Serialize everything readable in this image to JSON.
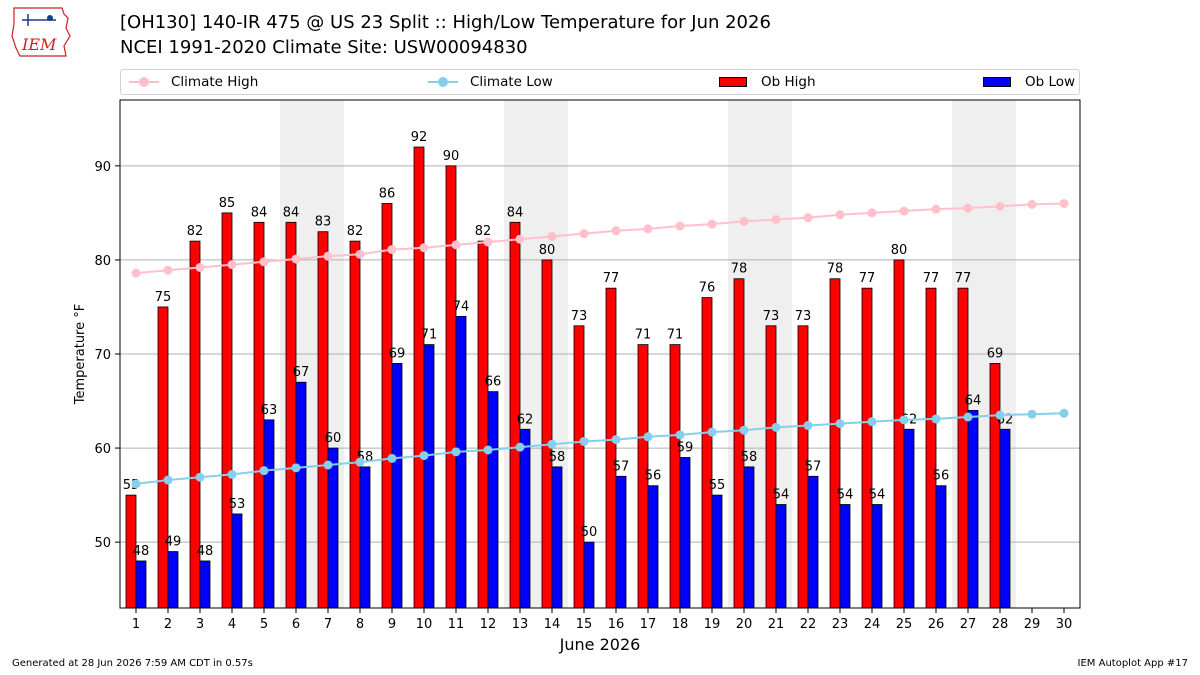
{
  "logo": {
    "text": "IEM"
  },
  "title_line1": "[OH130] 140-IR 475 @ US 23 Split :: High/Low Temperature for Jun 2026",
  "title_line2": "NCEI 1991-2020 Climate Site: USW00094830",
  "footer_left": "Generated at 28 Jun 2026 7:59 AM CDT in 0.57s",
  "footer_right": "IEM Autoplot App #17",
  "legend": {
    "placement": "top",
    "items": [
      {
        "label": "Climate High",
        "kind": "line",
        "color": "#ffc0cb"
      },
      {
        "label": "Climate Low",
        "kind": "line",
        "color": "#87ceeb"
      },
      {
        "label": "Ob High",
        "kind": "bar",
        "color": "#ff0000"
      },
      {
        "label": "Ob Low",
        "kind": "bar",
        "color": "#0000ff"
      }
    ]
  },
  "chart_data": {
    "type": "bar",
    "title": "[OH130] 140-IR 475 @ US 23 Split :: High/Low Temperature for Jun 2026",
    "subtitle": "NCEI 1991-2020 Climate Site: USW00094830",
    "xlabel": "June 2026",
    "ylabel": "Temperature °F",
    "x": [
      1,
      2,
      3,
      4,
      5,
      6,
      7,
      8,
      9,
      10,
      11,
      12,
      13,
      14,
      15,
      16,
      17,
      18,
      19,
      20,
      21,
      22,
      23,
      24,
      25,
      26,
      27,
      28,
      29,
      30
    ],
    "xlim": [
      0.5,
      30.5
    ],
    "ylim": [
      43,
      97
    ],
    "yticks": [
      50,
      60,
      70,
      80,
      90
    ],
    "grid": "horizontal",
    "weekend_shading": [
      [
        6,
        7
      ],
      [
        13,
        14
      ],
      [
        20,
        21
      ],
      [
        27,
        28
      ]
    ],
    "weekend_color": "#efefef",
    "series": [
      {
        "name": "Ob High",
        "kind": "bar",
        "color": "#ff0000",
        "values": [
          55,
          75,
          82,
          85,
          84,
          84,
          83,
          82,
          86,
          92,
          90,
          82,
          84,
          80,
          73,
          77,
          71,
          71,
          76,
          78,
          73,
          73,
          78,
          77,
          80,
          77,
          77,
          69,
          null,
          null
        ]
      },
      {
        "name": "Ob Low",
        "kind": "bar",
        "color": "#0000ff",
        "values": [
          48,
          49,
          48,
          53,
          63,
          67,
          60,
          58,
          69,
          71,
          74,
          66,
          62,
          58,
          50,
          57,
          56,
          59,
          55,
          58,
          54,
          57,
          54,
          54,
          62,
          56,
          64,
          62,
          null,
          null
        ]
      },
      {
        "name": "Climate High",
        "kind": "line",
        "color": "#ffc0cb",
        "values": [
          78.6,
          78.9,
          79.2,
          79.5,
          79.8,
          80.1,
          80.4,
          80.6,
          81.1,
          81.3,
          81.6,
          81.9,
          82.2,
          82.5,
          82.8,
          83.1,
          83.3,
          83.6,
          83.8,
          84.1,
          84.3,
          84.5,
          84.8,
          85.0,
          85.2,
          85.4,
          85.5,
          85.7,
          85.9,
          86.0
        ]
      },
      {
        "name": "Climate Low",
        "kind": "line",
        "color": "#87ceeb",
        "values": [
          56.2,
          56.6,
          56.9,
          57.2,
          57.6,
          57.9,
          58.2,
          58.5,
          58.9,
          59.2,
          59.6,
          59.8,
          60.1,
          60.4,
          60.7,
          60.9,
          61.2,
          61.4,
          61.7,
          61.9,
          62.2,
          62.4,
          62.6,
          62.8,
          63.0,
          63.1,
          63.3,
          63.5,
          63.6,
          63.7
        ]
      }
    ]
  }
}
